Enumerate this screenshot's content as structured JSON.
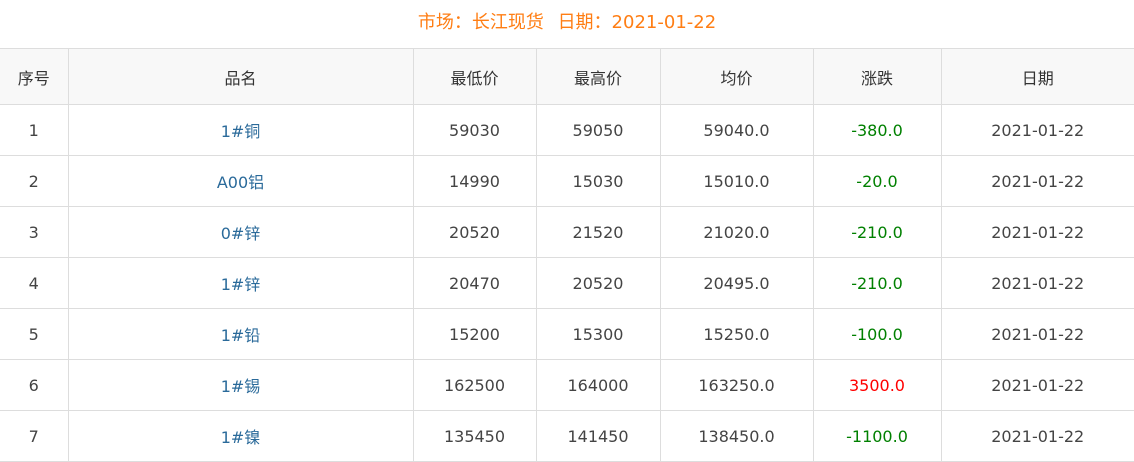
{
  "header": {
    "market_label": "市场：长江现货",
    "date_label": "日期：2021-01-22"
  },
  "columns": [
    "序号",
    "品名",
    "最低价",
    "最高价",
    "均价",
    "涨跌",
    "日期"
  ],
  "colors": {
    "title": "#ff7e14",
    "up": "#ff0000",
    "down": "#008000",
    "name": "#2a6a9a"
  },
  "rows": [
    {
      "no": "1",
      "name": "1#铜",
      "low": "59030",
      "high": "59050",
      "avg": "59040.0",
      "change": "-380.0",
      "date": "2021-01-22"
    },
    {
      "no": "2",
      "name": "A00铝",
      "low": "14990",
      "high": "15030",
      "avg": "15010.0",
      "change": "-20.0",
      "date": "2021-01-22"
    },
    {
      "no": "3",
      "name": "0#锌",
      "low": "20520",
      "high": "21520",
      "avg": "21020.0",
      "change": "-210.0",
      "date": "2021-01-22"
    },
    {
      "no": "4",
      "name": "1#锌",
      "low": "20470",
      "high": "20520",
      "avg": "20495.0",
      "change": "-210.0",
      "date": "2021-01-22"
    },
    {
      "no": "5",
      "name": "1#铅",
      "low": "15200",
      "high": "15300",
      "avg": "15250.0",
      "change": "-100.0",
      "date": "2021-01-22"
    },
    {
      "no": "6",
      "name": "1#锡",
      "low": "162500",
      "high": "164000",
      "avg": "163250.0",
      "change": "3500.0",
      "date": "2021-01-22"
    },
    {
      "no": "7",
      "name": "1#镍",
      "low": "135450",
      "high": "141450",
      "avg": "138450.0",
      "change": "-1100.0",
      "date": "2021-01-22"
    }
  ]
}
